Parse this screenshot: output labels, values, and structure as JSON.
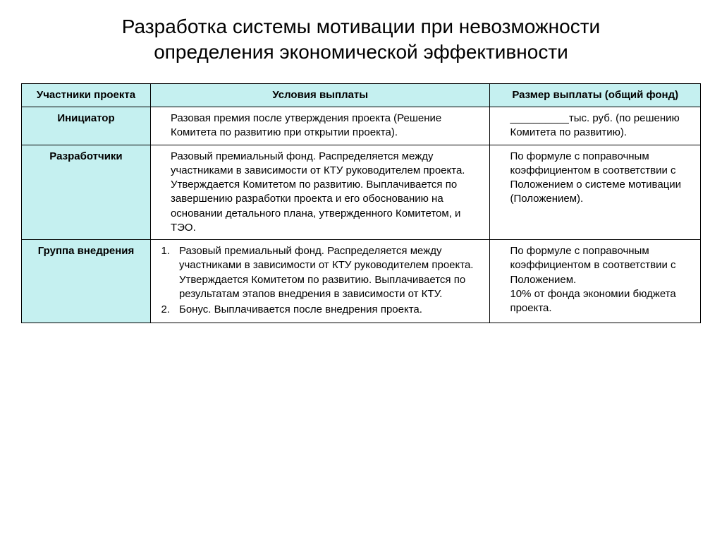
{
  "title": "Разработка системы мотивации при невозможности определения экономической эффективности",
  "table": {
    "columns": [
      {
        "header": "Участники проекта",
        "width_pct": 19,
        "bg": "#c5f0f0"
      },
      {
        "header": "Условия выплаты",
        "width_pct": 50,
        "bg": "#c5f0f0"
      },
      {
        "header": "Размер выплаты (общий фонд)",
        "width_pct": 31,
        "bg": "#c5f0f0"
      }
    ],
    "rows": [
      {
        "role": "Инициатор",
        "condition": "Разовая премия после утверждения проекта (Решение Комитета по развитию при открытии проекта).",
        "payment": "__________тыс. руб. (по решению Комитета по развитию)."
      },
      {
        "role": "Разработчики",
        "condition": "Разовый премиальный фонд. Распределяется между участниками в зависимости от КТУ руководителем проекта. Утверждается Комитетом по развитию. Выплачивается по завершению разработки проекта и его обоснованию на основании детального плана, утвержденного Комитетом, и ТЭО.",
        "payment": "По формуле с поправочным коэффициентом в соответствии с Положением о системе мотивации (Положением)."
      },
      {
        "role": "Группа внедрения",
        "condition_list": [
          "Разовый премиальный фонд. Распределяется между участниками в зависимости от КТУ руководителем проекта. Утверждается Комитетом по развитию. Выплачивается по результатам этапов внедрения в зависимости от КТУ.",
          "Бонус. Выплачивается после внедрения проекта."
        ],
        "payment_lines": [
          "По формуле с поправочным коэффициентом в соответствии с Положением.",
          "10% от фонда экономии бюджета проекта."
        ]
      }
    ],
    "header_bg": "#c5f0f0",
    "body_bg": "#ffffff",
    "border_color": "#000000",
    "font_size_pt": 15,
    "title_font_size_pt": 28
  }
}
